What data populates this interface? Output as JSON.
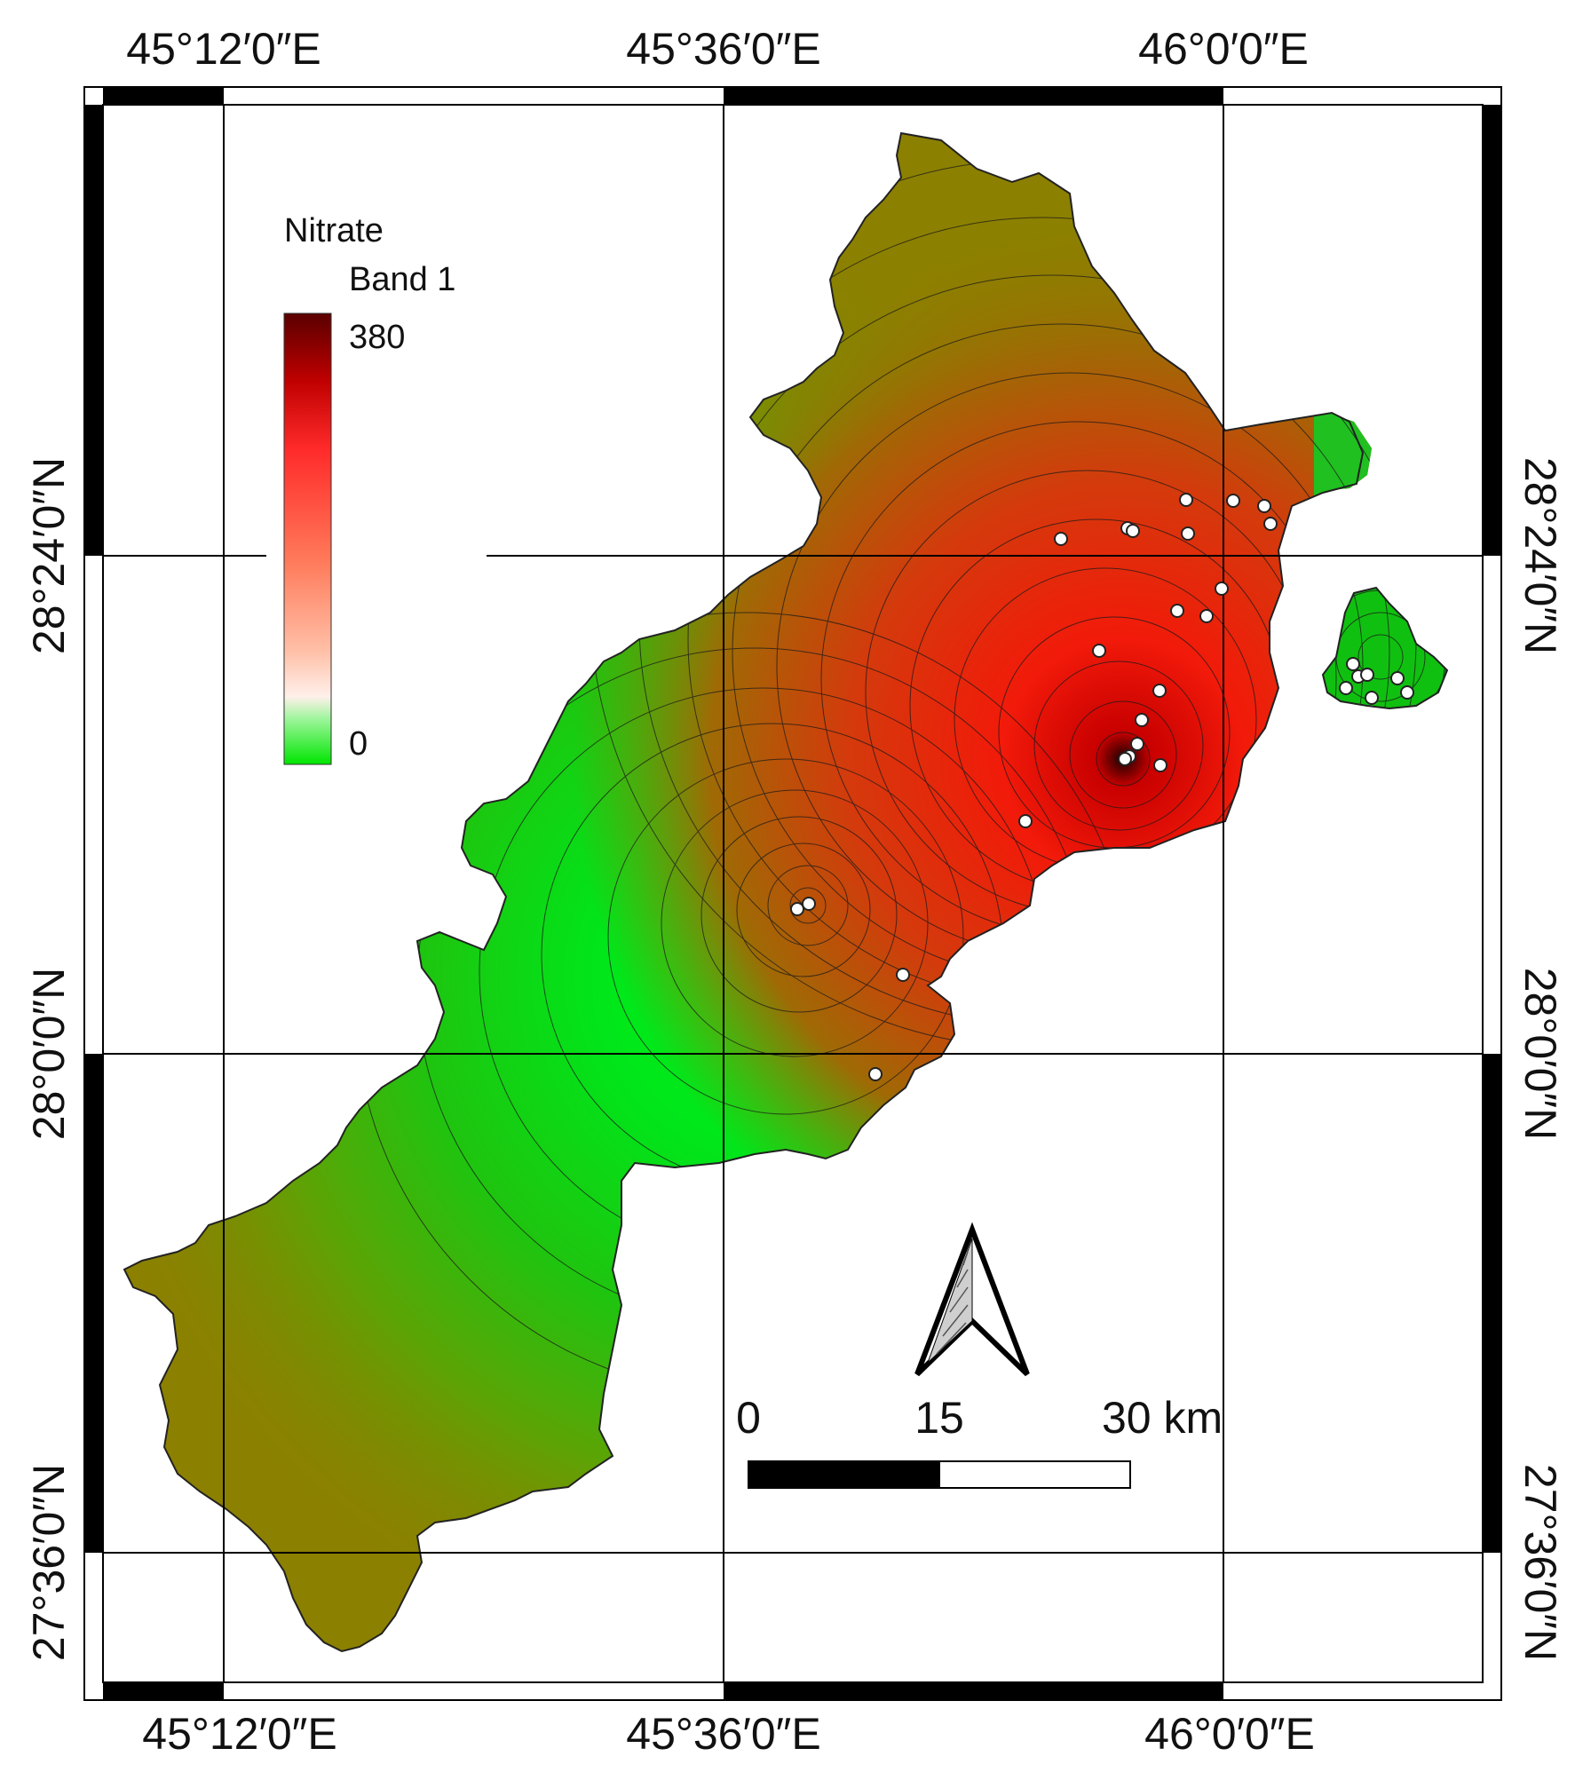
{
  "graticule": {
    "top_labels": [
      "45°12′0″E",
      "45°36′0″E",
      "46°0′0″E"
    ],
    "bottom_labels": [
      "45°12′0″E",
      "45°36′0″E",
      "46°0′0″E"
    ],
    "left_labels": [
      "28°24′0″N",
      "28°0′0″N",
      "27°36′0″N"
    ],
    "right_labels": [
      "28°24′0″N",
      "28°0′0″N",
      "27°36′0″N"
    ]
  },
  "legend": {
    "title": "Nitrate",
    "band": "Band 1",
    "max_label": "380",
    "min_label": "0",
    "ramp_colors": [
      "#5a0000",
      "#c00000",
      "#ff2a2a",
      "#ff7a5a",
      "#ffc0a8",
      "#fff0ea",
      "#9cf59a",
      "#00e600"
    ]
  },
  "scale_bar": {
    "labels": [
      "0",
      "15",
      "30 km"
    ]
  },
  "north_arrow": {
    "icon": "north-arrow-icon"
  },
  "colors": {
    "high": "#d10000",
    "mid": "#8c7f00",
    "low": "#00e61a",
    "sample_point": "#ffffff"
  }
}
